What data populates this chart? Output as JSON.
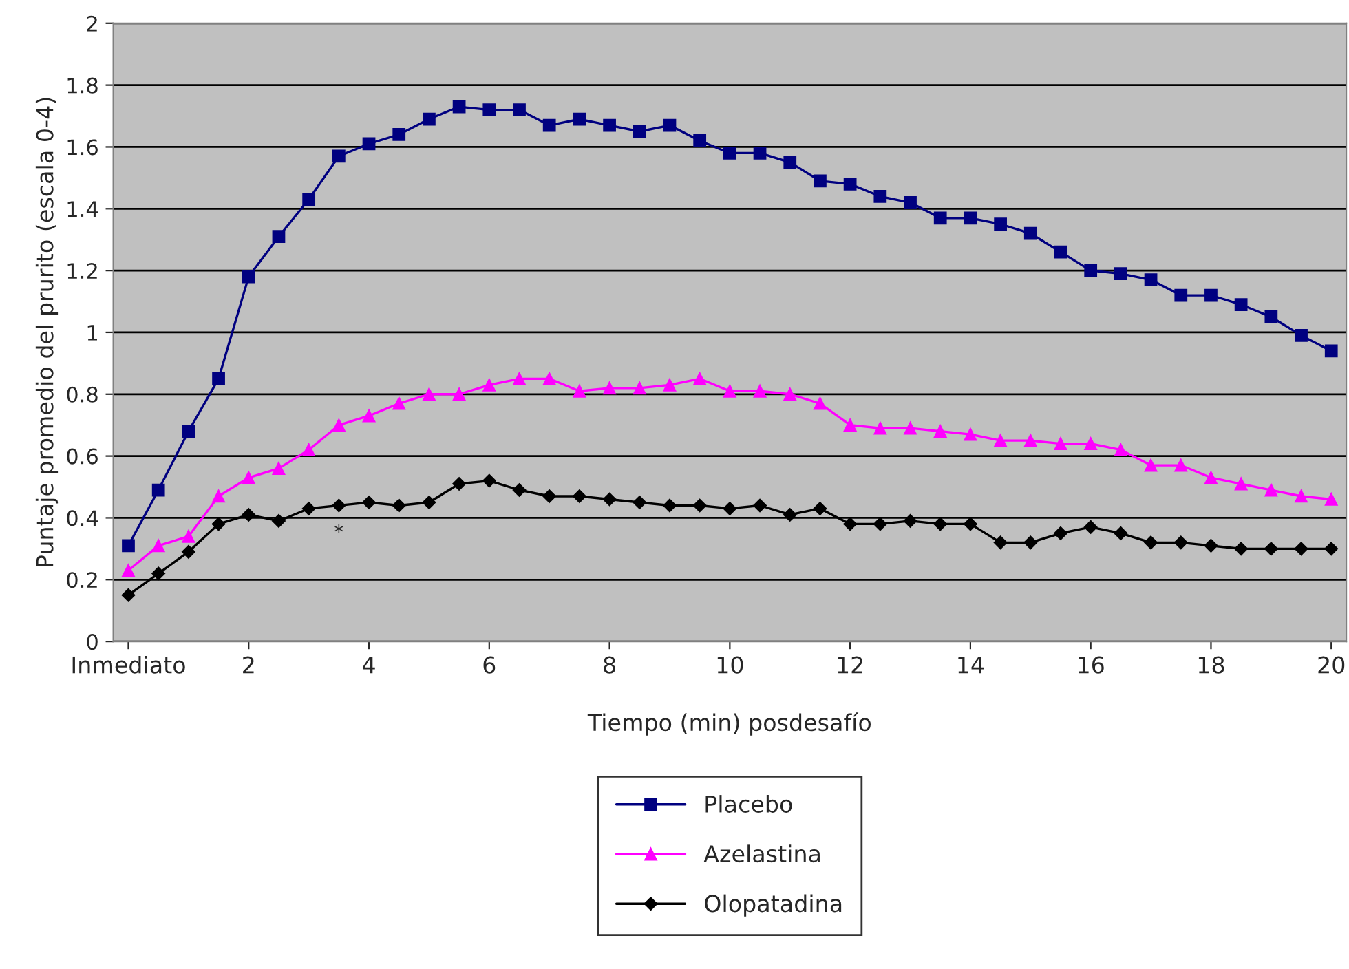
{
  "chart_data": {
    "type": "line",
    "xlabel": "Tiempo (min) posdesafío",
    "ylabel": "Puntaje promedio del prurito (escala 0-4)",
    "categories": [
      "Inmediato",
      null,
      null,
      null,
      "2",
      null,
      null,
      null,
      "4",
      null,
      null,
      null,
      "6",
      null,
      null,
      null,
      "8",
      null,
      null,
      null,
      "10",
      null,
      null,
      null,
      "12",
      null,
      null,
      null,
      "14",
      null,
      null,
      null,
      "16",
      null,
      null,
      null,
      "18",
      null,
      null,
      null,
      "20"
    ],
    "series": [
      {
        "name": "Placebo",
        "color": "#000080",
        "marker": "square",
        "values": [
          0.31,
          0.49,
          0.68,
          0.85,
          1.18,
          1.31,
          1.43,
          1.57,
          1.61,
          1.64,
          1.69,
          1.73,
          1.72,
          1.72,
          1.67,
          1.69,
          1.67,
          1.65,
          1.67,
          1.62,
          1.58,
          1.58,
          1.55,
          1.49,
          1.48,
          1.44,
          1.42,
          1.37,
          1.37,
          1.35,
          1.32,
          1.26,
          1.2,
          1.19,
          1.17,
          1.12,
          1.12,
          1.09,
          1.05,
          0.99,
          0.94
        ]
      },
      {
        "name": "Azelastina",
        "color": "#ff00ff",
        "marker": "triangle",
        "values": [
          0.23,
          0.31,
          0.34,
          0.47,
          0.53,
          0.56,
          0.62,
          0.7,
          0.73,
          0.77,
          0.8,
          0.8,
          0.83,
          0.85,
          0.85,
          0.81,
          0.82,
          0.82,
          0.83,
          0.85,
          0.81,
          0.81,
          0.8,
          0.77,
          0.7,
          0.69,
          0.69,
          0.68,
          0.67,
          0.65,
          0.65,
          0.64,
          0.64,
          0.62,
          0.57,
          0.57,
          0.53,
          0.51,
          0.49,
          0.47,
          0.46
        ]
      },
      {
        "name": "Olopatadina",
        "color": "#000000",
        "marker": "diamond",
        "values": [
          0.15,
          0.22,
          0.29,
          0.38,
          0.41,
          0.39,
          0.43,
          0.44,
          0.45,
          0.44,
          0.45,
          0.51,
          0.52,
          0.49,
          0.47,
          0.47,
          0.46,
          0.45,
          0.44,
          0.44,
          0.43,
          0.44,
          0.41,
          0.43,
          0.38,
          0.38,
          0.39,
          0.38,
          0.38,
          0.32,
          0.32,
          0.35,
          0.37,
          0.35,
          0.32,
          0.32,
          0.31,
          0.3,
          0.3,
          0.3,
          0.3
        ]
      }
    ],
    "ylim": [
      0,
      2
    ],
    "yticks": [
      0,
      0.2,
      0.4,
      0.6,
      0.8,
      1,
      1.2,
      1.4,
      1.6,
      1.8,
      2
    ],
    "grid": "y",
    "legend": "bottom",
    "annotations": [
      "*"
    ]
  }
}
